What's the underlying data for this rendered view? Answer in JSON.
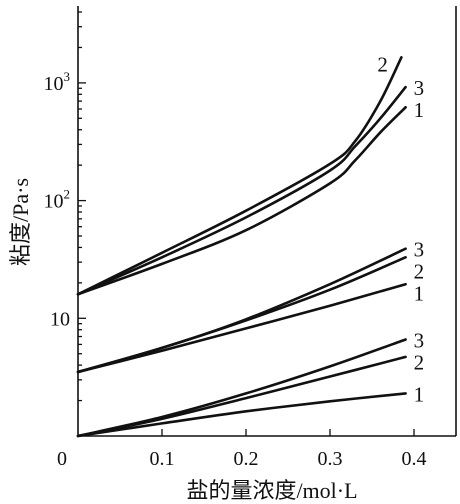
{
  "chart_data": {
    "type": "line",
    "xlabel": "盐的量浓度/mol·L",
    "ylabel": "粘度/Pa·s",
    "x_ticks": [
      "0",
      "0.1",
      "0.2",
      "0.3",
      "0.4"
    ],
    "x_tick_values": [
      0,
      0.1,
      0.2,
      0.3,
      0.4
    ],
    "y_scale": "log",
    "y_ticks": [
      "10",
      "10",
      "10"
    ],
    "y_tick_exponents": [
      "",
      "2",
      "3"
    ],
    "y_tick_values": [
      10,
      100,
      1000
    ],
    "xlim": [
      0,
      0.45
    ],
    "ylim": [
      1,
      4500
    ],
    "grid": false,
    "groups": [
      {
        "series": [
          {
            "name": "1",
            "x": [
              0.0,
              0.1,
              0.2,
              0.3,
              0.39
            ],
            "y": [
              1.0,
              1.28,
              1.62,
              1.97,
              2.3
            ]
          },
          {
            "name": "2",
            "x": [
              0.0,
              0.1,
              0.2,
              0.3,
              0.39
            ],
            "y": [
              1.0,
              1.4,
              2.1,
              3.2,
              4.7
            ]
          },
          {
            "name": "3",
            "x": [
              0.0,
              0.1,
              0.2,
              0.3,
              0.39
            ],
            "y": [
              1.0,
              1.45,
              2.3,
              3.9,
              6.6
            ]
          }
        ]
      },
      {
        "series": [
          {
            "name": "1",
            "x": [
              0.0,
              0.1,
              0.2,
              0.3,
              0.39
            ],
            "y": [
              3.5,
              5.3,
              8.2,
              12.8,
              19.5
            ]
          },
          {
            "name": "2",
            "x": [
              0.0,
              0.1,
              0.2,
              0.3,
              0.39
            ],
            "y": [
              3.5,
              5.6,
              9.6,
              17.5,
              33.0
            ]
          },
          {
            "name": "3",
            "x": [
              0.0,
              0.1,
              0.2,
              0.3,
              0.39
            ],
            "y": [
              3.5,
              5.6,
              9.8,
              19.5,
              39.0
            ]
          }
        ]
      },
      {
        "series": [
          {
            "name": "1",
            "x": [
              0.0,
              0.1,
              0.2,
              0.3,
              0.33,
              0.36,
              0.39
            ],
            "y": [
              16,
              29,
              56,
              140,
              220,
              380,
              620
            ]
          },
          {
            "name": "2",
            "x": [
              0.0,
              0.1,
              0.2,
              0.3,
              0.33,
              0.36,
              0.385
            ],
            "y": [
              16,
              36,
              82,
              205,
              320,
              700,
              1650
            ]
          },
          {
            "name": "3",
            "x": [
              0.0,
              0.1,
              0.2,
              0.3,
              0.33,
              0.36,
              0.39
            ],
            "y": [
              16,
              33,
              72,
              180,
              290,
              500,
              920
            ]
          }
        ]
      }
    ]
  }
}
